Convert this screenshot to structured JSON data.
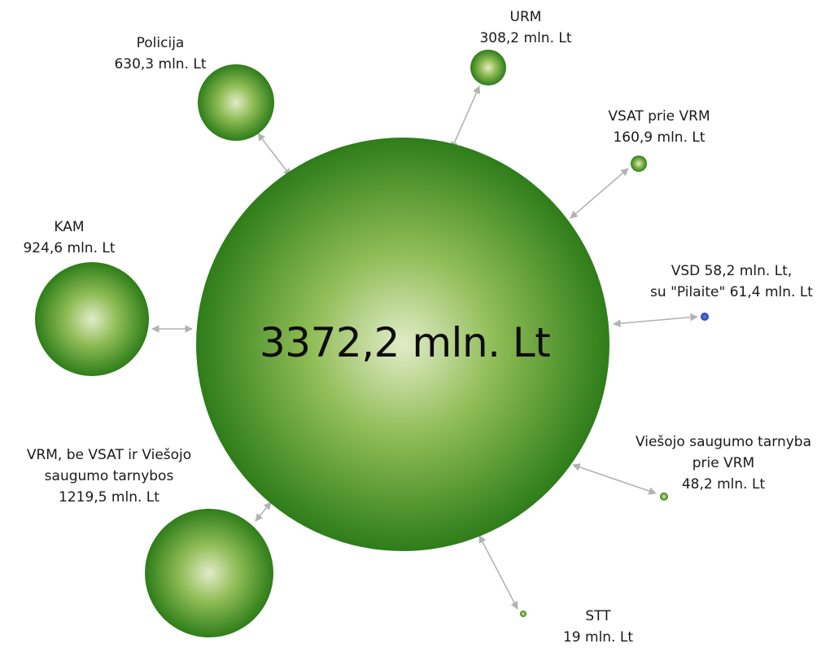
{
  "diagram": {
    "total_label": "3372,2 mln. Lt",
    "colors": {
      "bubble_dark": "#2e7d1a",
      "bubble_light": "#e2ecc8",
      "vsd_dot": "#1f4fc8",
      "connector": "#b3b3b3"
    },
    "nodes": [
      {
        "id": "policija",
        "lines": [
          "Policija",
          "630,3 mln. Lt"
        ],
        "value": 630.3
      },
      {
        "id": "urm",
        "lines": [
          "URM",
          "308,2 mln. Lt"
        ],
        "value": 308.2
      },
      {
        "id": "vsat",
        "lines": [
          "VSAT prie VRM",
          "160,9 mln. Lt"
        ],
        "value": 160.9
      },
      {
        "id": "kam",
        "lines": [
          "KAM",
          "924,6 mln. Lt"
        ],
        "value": 924.6
      },
      {
        "id": "vsd",
        "lines": [
          "VSD 58,2 mln. Lt,",
          "su \"Pilaite\" 61,4 mln. Lt"
        ],
        "value": 58.2
      },
      {
        "id": "vrm",
        "lines": [
          "VRM, be VSAT ir Viešojo",
          "saugumo tarnybos",
          "1219,5 mln. Lt"
        ],
        "value": 1219.5
      },
      {
        "id": "vst",
        "lines": [
          "Viešojo saugumo tarnyba",
          "prie VRM",
          "48,2 mln. Lt"
        ],
        "value": 48.2
      },
      {
        "id": "stt",
        "lines": [
          "STT",
          "19 mln. Lt"
        ],
        "value": 19
      }
    ]
  }
}
